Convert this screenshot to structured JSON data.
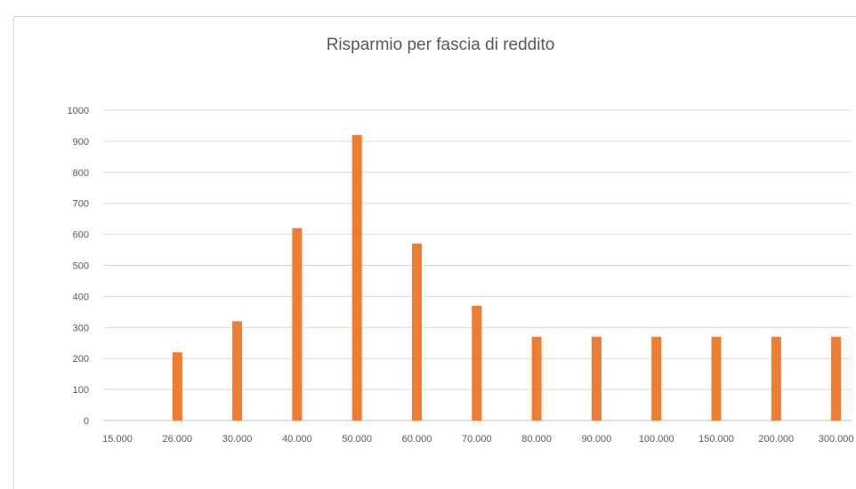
{
  "chart_data": {
    "type": "bar",
    "title": "Risparmio per fascia di reddito",
    "xlabel": "",
    "ylabel": "",
    "categories": [
      "15.000",
      "26.000",
      "30.000",
      "40.000",
      "50.000",
      "60.000",
      "70.000",
      "80.000",
      "90.000",
      "100.000",
      "150.000",
      "200.000",
      "300.000"
    ],
    "series": [
      {
        "values": [
          0,
          220,
          320,
          620,
          920,
          570,
          370,
          270,
          270,
          270,
          270,
          270,
          270
        ]
      }
    ],
    "ylim": [
      0,
      1000
    ],
    "yticks": [
      "0",
      "100",
      "200",
      "300",
      "400",
      "500",
      "600",
      "700",
      "800",
      "900",
      "1000"
    ],
    "grid": true,
    "legend": "none",
    "colors": {
      "bar": "#ED7D31",
      "grid": "#D9D9D9",
      "text": "#595959"
    }
  }
}
